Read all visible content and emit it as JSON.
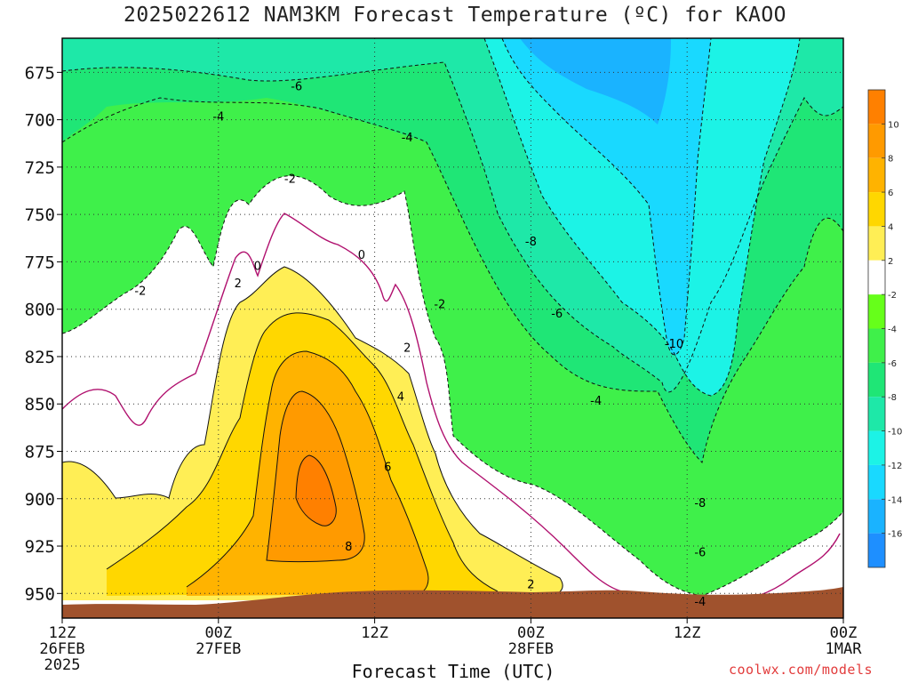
{
  "chart_data": {
    "type": "heatmap",
    "title": "2025022612 NAM3KM Forecast Temperature (ºC) for KAOO",
    "xlabel": "Forecast Time (UTC)",
    "ylabel": "",
    "credit": "coolwx.com/models",
    "x_ticks": [
      {
        "hour": 0,
        "lines": [
          "12Z",
          "26FEB",
          "2025"
        ]
      },
      {
        "hour": 12,
        "lines": [
          "00Z",
          "27FEB"
        ]
      },
      {
        "hour": 24,
        "lines": [
          "12Z"
        ]
      },
      {
        "hour": 36,
        "lines": [
          "00Z",
          "28FEB"
        ]
      },
      {
        "hour": 48,
        "lines": [
          "12Z"
        ]
      },
      {
        "hour": 60,
        "lines": [
          "00Z",
          "1MAR"
        ]
      }
    ],
    "x_range_hours": [
      0,
      60
    ],
    "y_ticks_hpa": [
      675,
      700,
      725,
      750,
      775,
      800,
      825,
      850,
      875,
      900,
      925,
      950
    ],
    "y_range_hpa": [
      657,
      963
    ],
    "grid": true,
    "colorbar": {
      "placement": "right",
      "levels": [
        -16,
        -14,
        -12,
        -10,
        -8,
        -6,
        -4,
        -2,
        2,
        4,
        6,
        8,
        10
      ],
      "bin_colors": [
        "#1e8fff",
        "#1ab3ff",
        "#19d9ff",
        "#1cf3e6",
        "#1ee8a8",
        "#1fe676",
        "#3ff04a",
        "#66ff1a",
        "#ffffff",
        "#ffee55",
        "#ffd700",
        "#ffb300",
        "#ff9a00",
        "#ff8000"
      ]
    },
    "contour_labels": [
      {
        "text": "-6",
        "hour": 18,
        "hpa": 682
      },
      {
        "text": "-4",
        "hour": 12,
        "hpa": 698
      },
      {
        "text": "-4",
        "hour": 26.5,
        "hpa": 709
      },
      {
        "text": "-2",
        "hour": 17.5,
        "hpa": 731
      },
      {
        "text": "-2",
        "hour": 6,
        "hpa": 790
      },
      {
        "text": "0",
        "hour": 15,
        "hpa": 777
      },
      {
        "text": "0",
        "hour": 23,
        "hpa": 771
      },
      {
        "text": "2",
        "hour": 13.5,
        "hpa": 786
      },
      {
        "text": "-2",
        "hour": 29,
        "hpa": 797
      },
      {
        "text": "-8",
        "hour": 36,
        "hpa": 764
      },
      {
        "text": "-6",
        "hour": 38,
        "hpa": 802
      },
      {
        "text": "2",
        "hour": 26.5,
        "hpa": 820
      },
      {
        "text": "-10",
        "hour": 47,
        "hpa": 818
      },
      {
        "text": "4",
        "hour": 26,
        "hpa": 846
      },
      {
        "text": "-4",
        "hour": 41,
        "hpa": 848
      },
      {
        "text": "6",
        "hour": 25,
        "hpa": 883
      },
      {
        "text": "8",
        "hour": 22,
        "hpa": 925
      },
      {
        "text": "-8",
        "hour": 49,
        "hpa": 902
      },
      {
        "text": "-6",
        "hour": 49,
        "hpa": 928
      },
      {
        "text": "2",
        "hour": 36,
        "hpa": 945
      },
      {
        "text": "-4",
        "hour": 49,
        "hpa": 954
      }
    ]
  }
}
